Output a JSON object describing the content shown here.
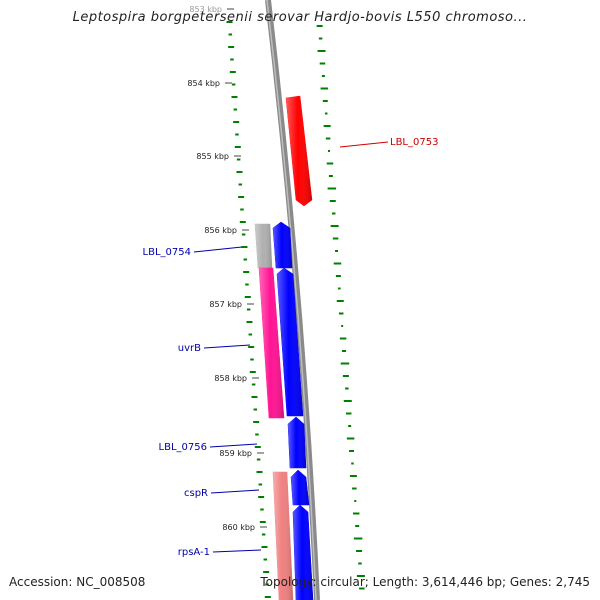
{
  "title": "Leptospira borgpetersenii serovar Hardjo-bovis L550 chromoso...",
  "footer": {
    "accession": "Accession: NC_008508",
    "summary": "Topology: circular; Length: 3,614,446 bp; Genes: 2,745"
  },
  "ruler": {
    "labels": [
      "853 kbp",
      "854 kbp",
      "855 kbp",
      "856 kbp",
      "857 kbp",
      "858 kbp",
      "859 kbp",
      "860 kbp"
    ]
  },
  "genes": [
    {
      "name": "LBL_0753",
      "strand": "forward",
      "color": "#ff0000",
      "labeled": true
    },
    {
      "name": "",
      "strand": "reverse",
      "color": "#b0b0b0",
      "labeled": false
    },
    {
      "name": "LBL_0754",
      "strand": "reverse",
      "color": "#0000ff",
      "labeled": true
    },
    {
      "name": "uvrB",
      "strand": "reverse",
      "color": "#ff1493",
      "labeled": true
    },
    {
      "name": "",
      "strand": "reverse",
      "color": "#0000ff",
      "labeled": false
    },
    {
      "name": "LBL_0756",
      "strand": "reverse",
      "color": "#0000ff",
      "labeled": true
    },
    {
      "name": "cspR",
      "strand": "reverse",
      "color": "#0000ff",
      "labeled": true
    },
    {
      "name": "rpsA-1",
      "strand": "reverse",
      "color": "#f08080",
      "labeled": true
    },
    {
      "name": "",
      "strand": "reverse",
      "color": "#0000ff",
      "labeled": false
    }
  ],
  "colors": {
    "backbone": "#888888",
    "gc_ticks": "#008000",
    "label_forward": "#cc0000",
    "label_reverse": "#0000aa"
  }
}
